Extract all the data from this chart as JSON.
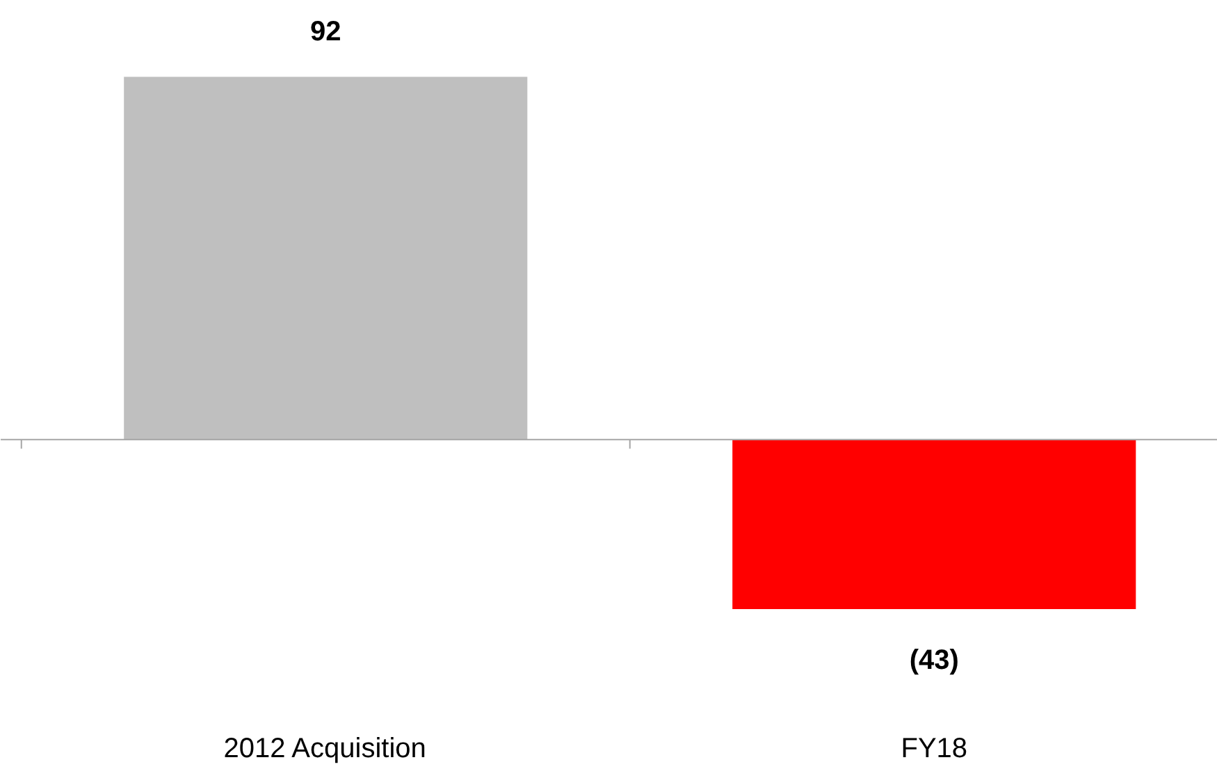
{
  "chart_data": {
    "type": "bar",
    "categories": [
      "2012 Acquisition",
      "FY18"
    ],
    "values": [
      92,
      -43
    ],
    "colors": [
      "#bfbfbf",
      "#ff0000"
    ],
    "value_labels": [
      "92",
      "(43)"
    ],
    "grid": false
  }
}
